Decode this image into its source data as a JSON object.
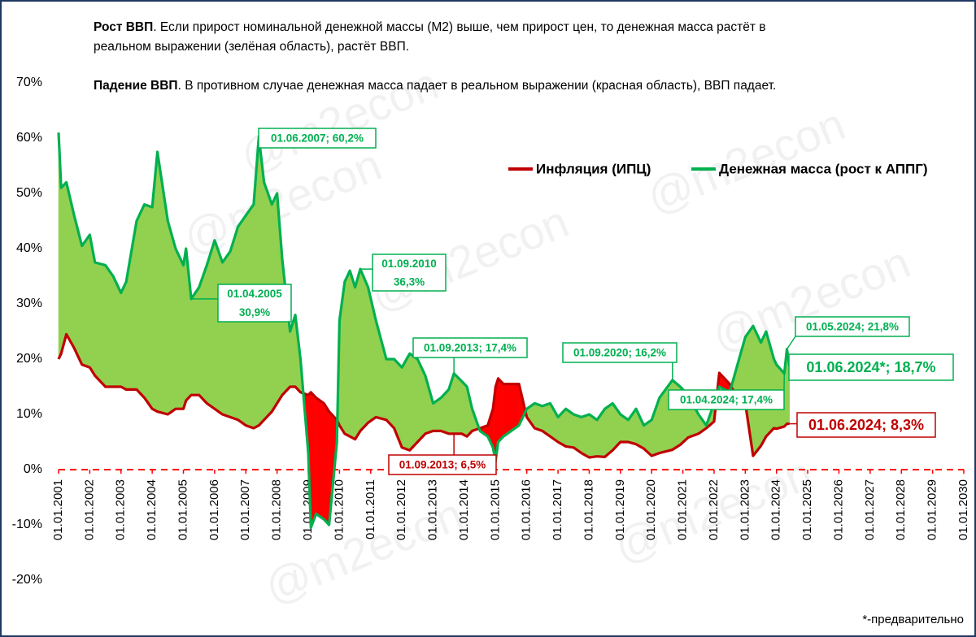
{
  "chart_data": {
    "type": "line",
    "header": [
      {
        "bold": "Рост ВВП",
        "lines": [
          ". Если прирост номинальной денежной массы (М2) выше, чем прирост цен,  то денежная масса растёт в",
          "реальном выражении (зелёная область), растёт ВВП."
        ]
      },
      {
        "bold": "Падение ВВП",
        "lines": [
          ". В противном случае денежная масса падает в реальном выражении (красная область), ВВП падает."
        ]
      }
    ],
    "footnote": "*-предварительно",
    "watermark": "@m2econ",
    "legend": "top-right",
    "fill_colors": {
      "above": "#92d050",
      "below": "#ff0000"
    },
    "zero_line_color": "#ff0000",
    "xlim": [
      "01.01.2001",
      "01.01.2030"
    ],
    "xticks": [
      "01.01.2001",
      "01.01.2002",
      "01.01.2003",
      "01.01.2004",
      "01.01.2005",
      "01.01.2006",
      "01.01.2007",
      "01.01.2008",
      "01.01.2009",
      "01.01.2010",
      "01.01.2011",
      "01.01.2012",
      "01.01.2013",
      "01.01.2014",
      "01.01.2015",
      "01.01.2016",
      "01.01.2017",
      "01.01.2018",
      "01.01.2019",
      "01.01.2020",
      "01.01.2021",
      "01.01.2022",
      "01.01.2023",
      "01.01.2024",
      "01.01.2025",
      "01.01.2026",
      "01.01.2027",
      "01.01.2028",
      "01.01.2029",
      "01.01.2030"
    ],
    "ylim": [
      -20,
      70
    ],
    "yticks": [
      {
        "value": -20,
        "label": "-20%"
      },
      {
        "value": -10,
        "label": "-10%"
      },
      {
        "value": 0,
        "label": "0%"
      },
      {
        "value": 10,
        "label": "10%"
      },
      {
        "value": 20,
        "label": "20%"
      },
      {
        "value": 30,
        "label": "30%"
      },
      {
        "value": 40,
        "label": "40%"
      },
      {
        "value": 50,
        "label": "50%"
      },
      {
        "value": 60,
        "label": "60%"
      },
      {
        "value": 70,
        "label": "70%"
      }
    ],
    "x": [
      "01.01.2001",
      "01.02.2001",
      "01.04.2001",
      "01.07.2001",
      "01.10.2001",
      "01.01.2002",
      "01.03.2002",
      "01.07.2002",
      "01.10.2002",
      "01.01.2003",
      "01.03.2003",
      "01.07.2003",
      "01.10.2003",
      "01.01.2004",
      "01.03.2004",
      "01.07.2004",
      "01.10.2004",
      "01.01.2005",
      "01.02.2005",
      "01.04.2005",
      "01.07.2005",
      "01.10.2005",
      "01.01.2006",
      "01.04.2006",
      "01.07.2006",
      "01.10.2006",
      "01.01.2007",
      "01.04.2007",
      "01.06.2007",
      "01.08.2007",
      "01.11.2007",
      "01.01.2008",
      "01.03.2008",
      "01.06.2008",
      "01.08.2008",
      "01.10.2008",
      "01.01.2009",
      "01.02.2009",
      "01.04.2009",
      "01.07.2009",
      "01.09.2009",
      "01.12.2009",
      "01.01.2010",
      "01.03.2010",
      "01.05.2010",
      "01.07.2010",
      "01.09.2010",
      "01.12.2010",
      "01.03.2011",
      "01.07.2011",
      "01.10.2011",
      "01.01.2012",
      "01.04.2012",
      "01.07.2012",
      "01.10.2012",
      "01.01.2013",
      "01.04.2013",
      "01.07.2013",
      "01.09.2013",
      "01.12.2013",
      "01.02.2014",
      "01.04.2014",
      "01.07.2014",
      "01.10.2014",
      "01.12.2014",
      "01.01.2015",
      "01.02.2015",
      "01.04.2015",
      "01.07.2015",
      "01.10.2015",
      "01.01.2016",
      "01.04.2016",
      "01.07.2016",
      "01.10.2016",
      "01.01.2017",
      "01.04.2017",
      "01.07.2017",
      "01.10.2017",
      "01.01.2018",
      "01.04.2018",
      "01.07.2018",
      "01.10.2018",
      "01.01.2019",
      "01.04.2019",
      "01.07.2019",
      "01.10.2019",
      "01.01.2020",
      "01.04.2020",
      "01.09.2020",
      "01.12.2020",
      "01.03.2021",
      "01.07.2021",
      "01.10.2021",
      "01.01.2022",
      "01.03.2022",
      "01.07.2022",
      "01.10.2022",
      "01.01.2023",
      "01.04.2023",
      "01.07.2023",
      "01.09.2023",
      "01.12.2023",
      "01.01.2024",
      "01.04.2024",
      "01.05.2024",
      "01.06.2024"
    ],
    "series": [
      {
        "name": "Инфляция (ИПЦ)",
        "color": "#c00000",
        "values": [
          20,
          21,
          24.5,
          22,
          19,
          18.5,
          17,
          15,
          15,
          15,
          14.5,
          14.5,
          13,
          11,
          10.5,
          10,
          11,
          11,
          12.5,
          13.5,
          13.5,
          12,
          11,
          10,
          9.5,
          9,
          8,
          7.5,
          8,
          9,
          10.5,
          12,
          13.5,
          15,
          15,
          14,
          13.5,
          14,
          13,
          12,
          10.5,
          9,
          8,
          6.5,
          6,
          5.5,
          7,
          8.5,
          9.5,
          9,
          7.5,
          4,
          3.5,
          5,
          6.5,
          7,
          7,
          6.5,
          6.5,
          6.5,
          6,
          7,
          7.5,
          8,
          11,
          15,
          16.5,
          15.5,
          15.5,
          15.5,
          9.5,
          7.5,
          7,
          6,
          5,
          4.2,
          4,
          3,
          2.2,
          2.4,
          2.3,
          3.5,
          5,
          5,
          4.6,
          3.8,
          2.5,
          3,
          3.6,
          4.5,
          5.8,
          6.5,
          7.5,
          8.7,
          17.5,
          15.5,
          13,
          12,
          2.5,
          4.3,
          6,
          7.5,
          7.4,
          7.8,
          8.3,
          8.3
        ]
      },
      {
        "name": "Денежная масса (рост к АППГ)",
        "color": "#00b050",
        "values": [
          61,
          51,
          52,
          46,
          40.5,
          42.5,
          37.5,
          37,
          35,
          32,
          34,
          45,
          48,
          47.5,
          57.5,
          45,
          40,
          37,
          40,
          30.9,
          33,
          37,
          41.5,
          37.5,
          39.5,
          44,
          46,
          48,
          60.2,
          52,
          48,
          50,
          38,
          25,
          28,
          20,
          3,
          -10.5,
          -8,
          -9,
          -10,
          5,
          27,
          34,
          36,
          33,
          36.3,
          33,
          27,
          20,
          20,
          18.5,
          21,
          20,
          17,
          12,
          13,
          14.5,
          17.4,
          16,
          15,
          11,
          7,
          6,
          4,
          1.5,
          5,
          6,
          7,
          8,
          11,
          12,
          11.5,
          12,
          9.5,
          11,
          10,
          9.5,
          10,
          9,
          11,
          12,
          10,
          9,
          11,
          8,
          9,
          13,
          16.2,
          15,
          13.5,
          10,
          8,
          12,
          15,
          14,
          19,
          24,
          26,
          23,
          25,
          20,
          19,
          17.4,
          21.8,
          18.7
        ]
      }
    ],
    "annotations": [
      [
        "01.06.2007; 60,2%"
      ],
      [
        "01.04.2005",
        "30,9%"
      ],
      [
        "01.09.2010",
        "36,3%"
      ],
      [
        "01.09.2013; 17,4%"
      ],
      [
        "01.09.2013; 6,5%"
      ],
      [
        "01.09.2020; 16,2%"
      ],
      [
        "01.04.2024; 17,4%"
      ],
      [
        "01.05.2024; 21,8%"
      ],
      [
        "01.06.2024*; 18,7%"
      ],
      [
        "01.06.2024; 8,3%"
      ]
    ]
  }
}
